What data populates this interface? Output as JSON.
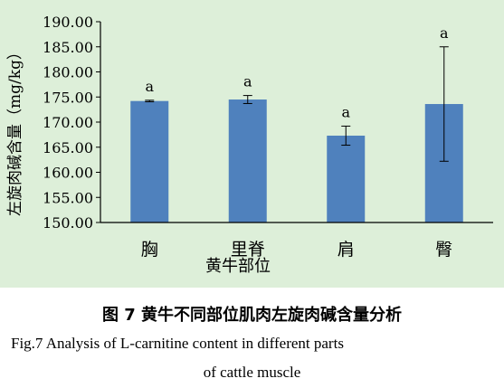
{
  "chart_data": {
    "type": "bar",
    "categories": [
      "胸",
      "里脊",
      "肩",
      "臀"
    ],
    "values": [
      174.2,
      174.5,
      167.3,
      173.6
    ],
    "errors": [
      0.15,
      0.8,
      1.9,
      11.4
    ],
    "significance": [
      "a",
      "a",
      "a",
      "a"
    ],
    "xlabel": "黄牛部位",
    "ylabel": "左旋肉碱含量（mg/kg）",
    "ylim": [
      150,
      190
    ],
    "yticks": [
      "150.00",
      "155.00",
      "160.00",
      "165.00",
      "170.00",
      "175.00",
      "180.00",
      "185.00",
      "190.00"
    ],
    "bar_color": "#4f81bd",
    "background_color": "#ddefd9",
    "grid": false
  },
  "caption": {
    "zh": "图 7  黄牛不同部位肌肉左旋肉碱含量分析",
    "en_line1": "Fig.7 Analysis of L-carnitine content in different parts",
    "en_line2": "of cattle muscle"
  }
}
